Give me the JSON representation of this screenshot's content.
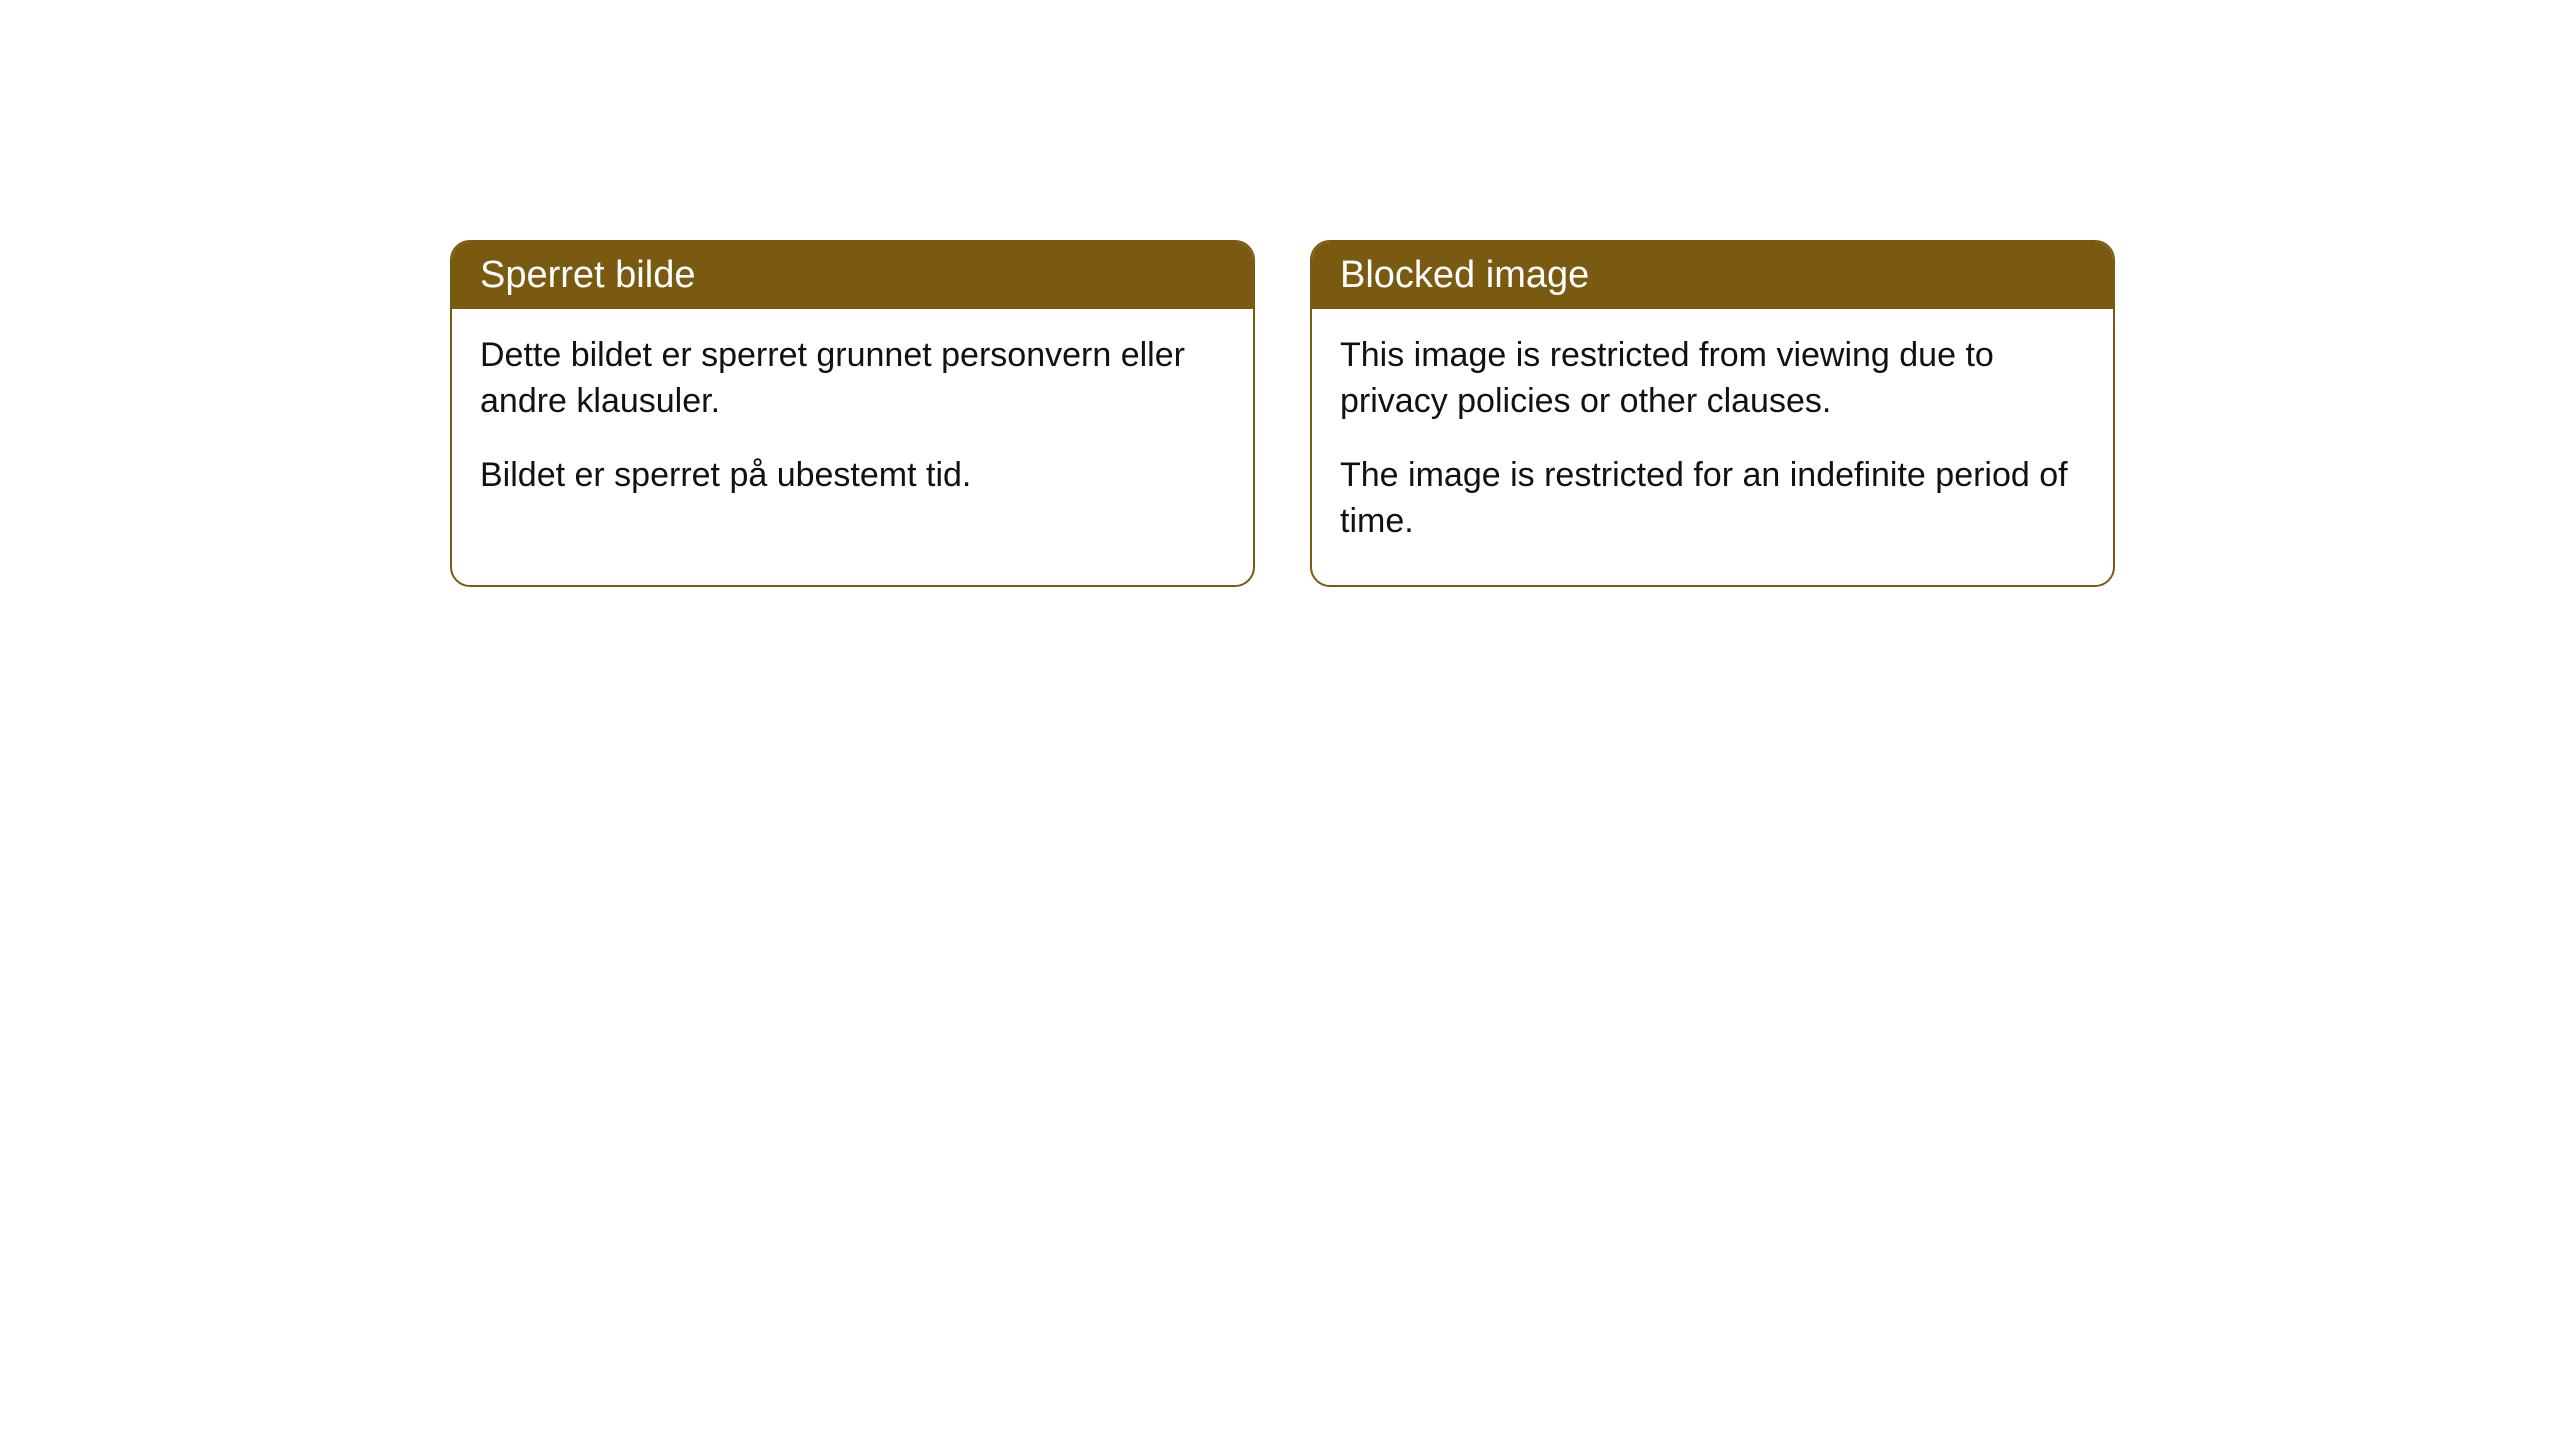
{
  "cards": [
    {
      "title": "Sperret bilde",
      "paragraph1": "Dette bildet er sperret grunnet personvern eller andre klausuler.",
      "paragraph2": "Bildet er sperret på ubestemt tid."
    },
    {
      "title": "Blocked image",
      "paragraph1": "This image is restricted from viewing due to privacy policies or other clauses.",
      "paragraph2": "The image is restricted for an indefinite period of time."
    }
  ],
  "style": {
    "header_background": "#7a5a11",
    "header_text_color": "#ffffff",
    "border_color": "#7a5a11",
    "body_text_color": "#111111",
    "card_background": "#ffffff",
    "border_radius": "20px",
    "title_fontsize": 38,
    "body_fontsize": 34
  }
}
